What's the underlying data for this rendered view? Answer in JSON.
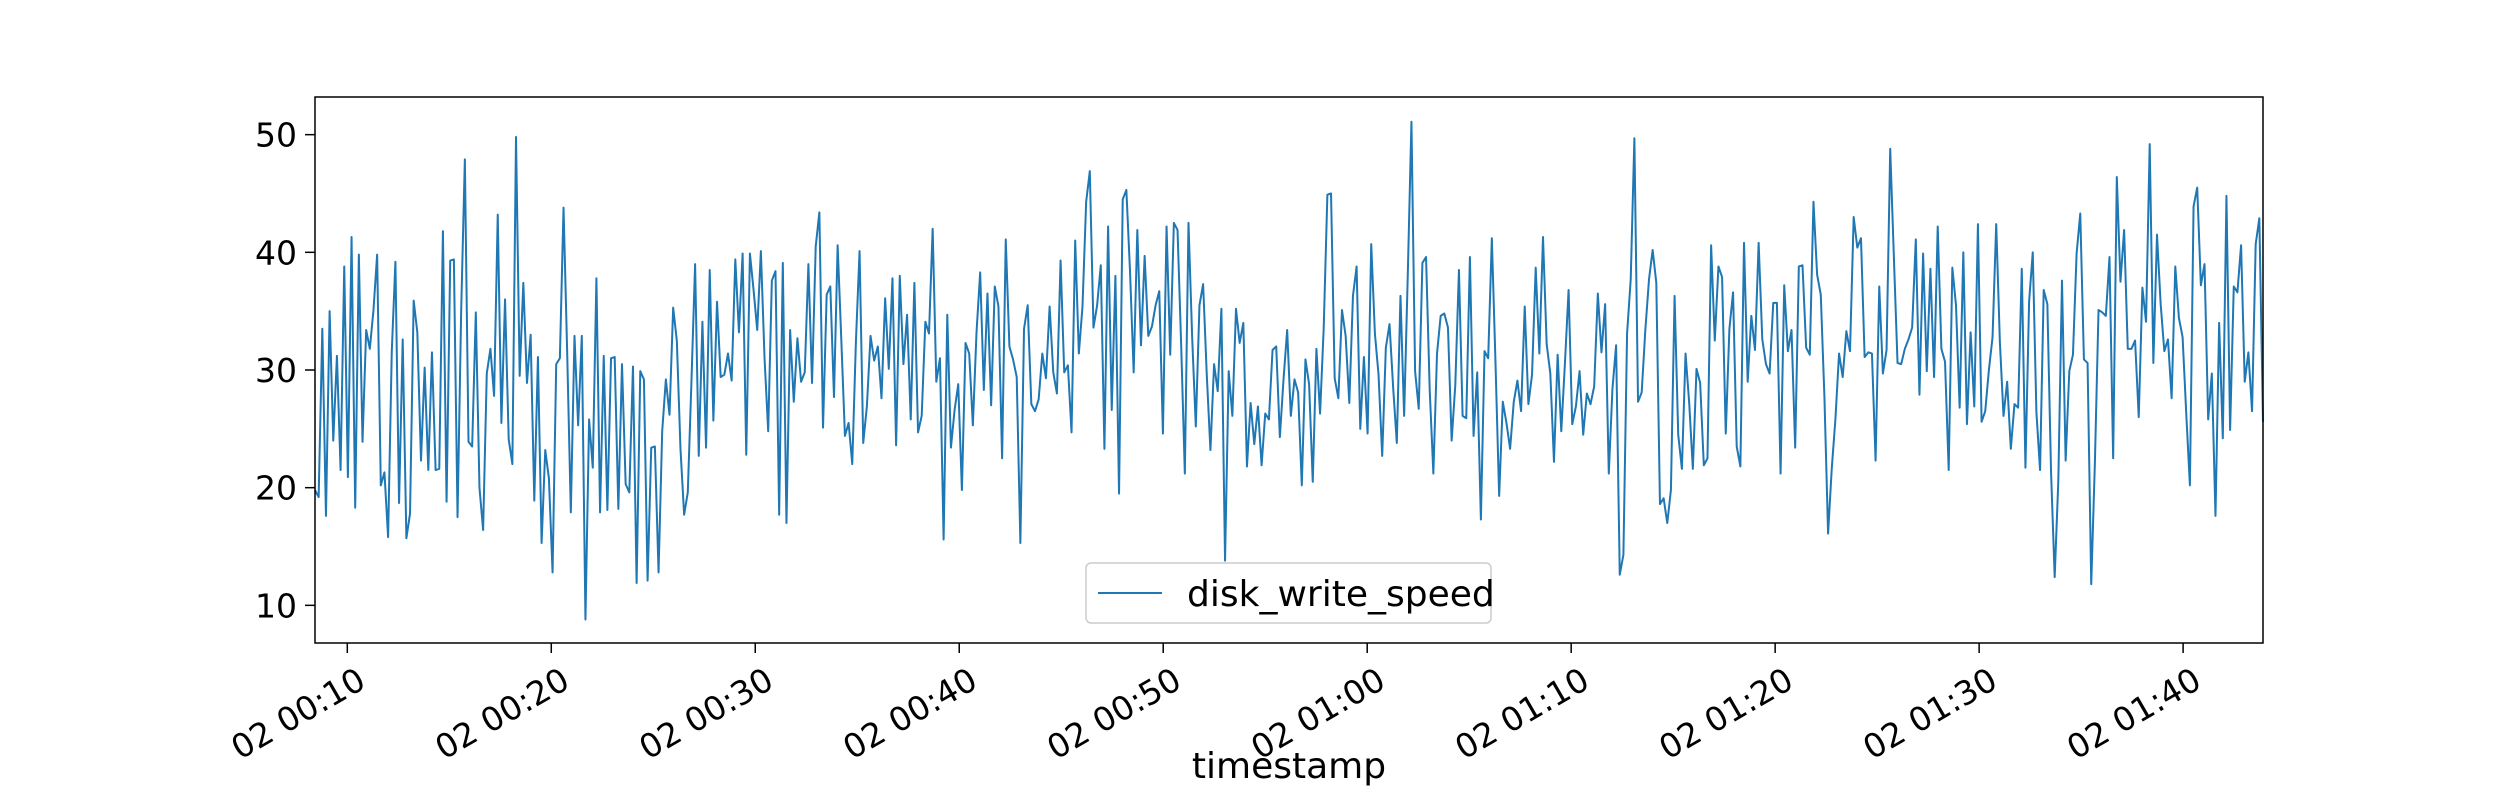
{
  "chart_data": {
    "type": "line",
    "title": "",
    "xlabel": "timestamp",
    "ylabel": "",
    "x_start": "02 00:08:25",
    "x_end": "02 01:43:55",
    "ylim": [
      6.8,
      53.2
    ],
    "xlim": [
      "02 00:08:25",
      "02 01:43:55"
    ],
    "grid": false,
    "legend_position": "lower-center",
    "yticks": [
      10,
      20,
      30,
      40,
      50
    ],
    "xticks": [
      {
        "time": "02 00:10",
        "label": "02 00:10"
      },
      {
        "time": "02 00:20",
        "label": "02 00:20"
      },
      {
        "time": "02 00:30",
        "label": "02 00:30"
      },
      {
        "time": "02 00:40",
        "label": "02 00:40"
      },
      {
        "time": "02 00:50",
        "label": "02 00:50"
      },
      {
        "time": "02 01:00",
        "label": "02 01:00"
      },
      {
        "time": "02 01:10",
        "label": "02 01:10"
      },
      {
        "time": "02 01:20",
        "label": "02 01:20"
      },
      {
        "time": "02 01:30",
        "label": "02 01:30"
      },
      {
        "time": "02 01:40",
        "label": "02 01:40"
      }
    ],
    "series": [
      {
        "name": "disk_write_speed",
        "color": "#1f77b4",
        "values": [
          19.8,
          19.2,
          33.5,
          17.6,
          35.0,
          24.0,
          31.2,
          21.5,
          38.8,
          20.9,
          41.3,
          18.3,
          39.8,
          23.9,
          33.4,
          31.8,
          35.1,
          39.8,
          20.2,
          21.3,
          15.8,
          31.5,
          39.2,
          18.7,
          32.6,
          15.7,
          17.8,
          35.9,
          33.2,
          22.3,
          30.2,
          21.5,
          31.5,
          21.5,
          21.6,
          41.8,
          18.8,
          39.3,
          39.4,
          17.5,
          35.1,
          47.9,
          23.9,
          23.5,
          34.9,
          20.0,
          16.4,
          29.7,
          31.8,
          27.8,
          43.2,
          25.5,
          36.0,
          24.1,
          22.0,
          49.8,
          29.5,
          37.4,
          28.9,
          33.0,
          18.9,
          31.1,
          15.3,
          23.2,
          20.8,
          12.8,
          30.5,
          31.0,
          43.8,
          31.5,
          17.9,
          32.9,
          25.3,
          32.9,
          8.8,
          25.8,
          21.7,
          37.8,
          17.9,
          31.2,
          18.1,
          31.0,
          31.1,
          18.2,
          30.5,
          20.3,
          19.6,
          30.3,
          11.9,
          29.9,
          29.2,
          12.1,
          23.4,
          23.5,
          12.8,
          24.8,
          29.2,
          26.2,
          35.3,
          32.5,
          23.3,
          17.7,
          19.6,
          29.0,
          39.0,
          22.7,
          34.1,
          23.4,
          38.5,
          25.7,
          35.8,
          29.4,
          29.6,
          31.4,
          29.1,
          39.4,
          33.2,
          39.9,
          22.8,
          39.9,
          36.8,
          33.4,
          40.1,
          31.0,
          24.8,
          37.6,
          38.4,
          17.7,
          39.1,
          17.0,
          33.4,
          27.3,
          32.7,
          29.0,
          29.8,
          39.0,
          28.9,
          40.5,
          43.4,
          25.1,
          36.4,
          37.1,
          27.7,
          40.6,
          32.6,
          24.4,
          25.5,
          22.0,
          32.4,
          40.1,
          23.8,
          26.9,
          32.9,
          30.8,
          32.0,
          27.6,
          36.1,
          30.1,
          37.8,
          23.6,
          38.0,
          30.5,
          34.7,
          25.8,
          37.4,
          24.7,
          26.1,
          34.1,
          33.1,
          42.0,
          29.0,
          31.0,
          15.6,
          34.7,
          23.4,
          26.6,
          28.8,
          19.8,
          32.3,
          31.4,
          25.3,
          33.2,
          38.3,
          28.3,
          36.5,
          27.0,
          37.1,
          35.4,
          22.5,
          41.1,
          32.0,
          30.9,
          29.4,
          15.3,
          33.5,
          35.5,
          27.1,
          26.5,
          27.5,
          31.4,
          29.3,
          35.4,
          29.8,
          28.0,
          39.3,
          29.8,
          30.4,
          24.7,
          41.0,
          31.4,
          35.4,
          44.3,
          46.9,
          33.6,
          35.5,
          38.9,
          23.3,
          42.2,
          26.6,
          38.0,
          19.5,
          44.5,
          45.3,
          38.4,
          29.8,
          41.9,
          32.1,
          39.7,
          32.9,
          33.7,
          35.5,
          36.7,
          24.6,
          42.2,
          31.3,
          42.5,
          41.9,
          32.1,
          21.2,
          42.5,
          32.8,
          25.2,
          35.5,
          37.3,
          29.6,
          23.2,
          30.5,
          28.2,
          35.2,
          13.8,
          29.9,
          26.1,
          35.2,
          32.3,
          34.0,
          21.8,
          27.2,
          23.7,
          26.9,
          21.9,
          26.3,
          25.8,
          31.7,
          32.0,
          24.3,
          29.2,
          33.4,
          26.1,
          29.2,
          28.1,
          20.2,
          30.9,
          28.8,
          20.5,
          31.8,
          26.3,
          33.6,
          44.9,
          45.0,
          29.3,
          27.6,
          35.1,
          32.9,
          27.2,
          36.3,
          38.8,
          25.0,
          31.1,
          24.6,
          40.7,
          33.1,
          29.6,
          22.7,
          31.9,
          33.9,
          28.5,
          23.8,
          36.3,
          26.1,
          38.1,
          51.1,
          29.9,
          26.7,
          39.1,
          39.6,
          28.3,
          21.2,
          31.4,
          34.6,
          34.8,
          33.6,
          24.0,
          28.7,
          38.5,
          26.1,
          25.9,
          39.6,
          24.4,
          29.8,
          17.3,
          31.6,
          31.0,
          41.2,
          30.6,
          19.3,
          27.3,
          25.5,
          23.3,
          27.3,
          29.1,
          26.5,
          35.4,
          27.1,
          29.6,
          38.7,
          31.4,
          41.3,
          32.2,
          29.7,
          22.2,
          31.3,
          24.8,
          30.6,
          36.8,
          25.4,
          26.9,
          29.9,
          24.5,
          28.0,
          27.1,
          28.6,
          36.5,
          31.5,
          35.6,
          21.2,
          28.4,
          32.1,
          12.6,
          14.3,
          33.1,
          37.7,
          49.7,
          27.3,
          28.1,
          33.4,
          37.7,
          40.2,
          37.4,
          18.6,
          19.1,
          17.0,
          19.8,
          36.3,
          24.5,
          21.6,
          31.4,
          27.2,
          21.6,
          30.1,
          28.9,
          21.9,
          22.5,
          40.6,
          32.5,
          38.8,
          37.9,
          24.6,
          33.5,
          36.6,
          23.5,
          21.8,
          40.8,
          29.0,
          34.6,
          31.7,
          40.8,
          32.6,
          30.5,
          29.7,
          35.7,
          35.7,
          21.2,
          37.2,
          31.6,
          33.4,
          23.4,
          38.8,
          38.9,
          31.9,
          31.3,
          44.3,
          38.1,
          36.4,
          27.7,
          16.1,
          21.6,
          25.8,
          31.4,
          29.4,
          33.3,
          31.6,
          43.0,
          40.4,
          41.2,
          31.1,
          31.5,
          31.4,
          22.3,
          37.1,
          29.7,
          31.7,
          48.8,
          39.6,
          30.6,
          30.5,
          31.8,
          32.6,
          33.6,
          41.1,
          27.9,
          39.9,
          29.9,
          38.6,
          29.4,
          42.2,
          31.8,
          30.7,
          21.5,
          38.7,
          35.5,
          26.8,
          40.0,
          25.4,
          33.2,
          26.9,
          42.4,
          25.6,
          26.5,
          30.0,
          32.8,
          42.4,
          32.4,
          26.1,
          29.0,
          23.3,
          27.1,
          26.8,
          38.6,
          21.7,
          35.8,
          40.0,
          26.4,
          21.5,
          36.8,
          35.6,
          21.4,
          12.4,
          20.6,
          37.6,
          22.3,
          29.9,
          31.3,
          39.9,
          43.3,
          30.9,
          30.6,
          11.8,
          22.1,
          35.1,
          34.9,
          34.6,
          39.6,
          22.5,
          46.4,
          37.5,
          41.9,
          31.8,
          31.8,
          32.5,
          26.0,
          37.0,
          34.1,
          49.2,
          30.6,
          41.5,
          35.6,
          31.6,
          32.6,
          27.6,
          38.8,
          34.4,
          32.8,
          26.3,
          20.2,
          43.9,
          45.5,
          37.2,
          39.0,
          25.8,
          29.7,
          17.6,
          34.0,
          24.2,
          44.8,
          24.9,
          37.1,
          36.6,
          40.6,
          29.0,
          31.5,
          26.5,
          40.7,
          42.9,
          25.6
        ]
      }
    ]
  }
}
